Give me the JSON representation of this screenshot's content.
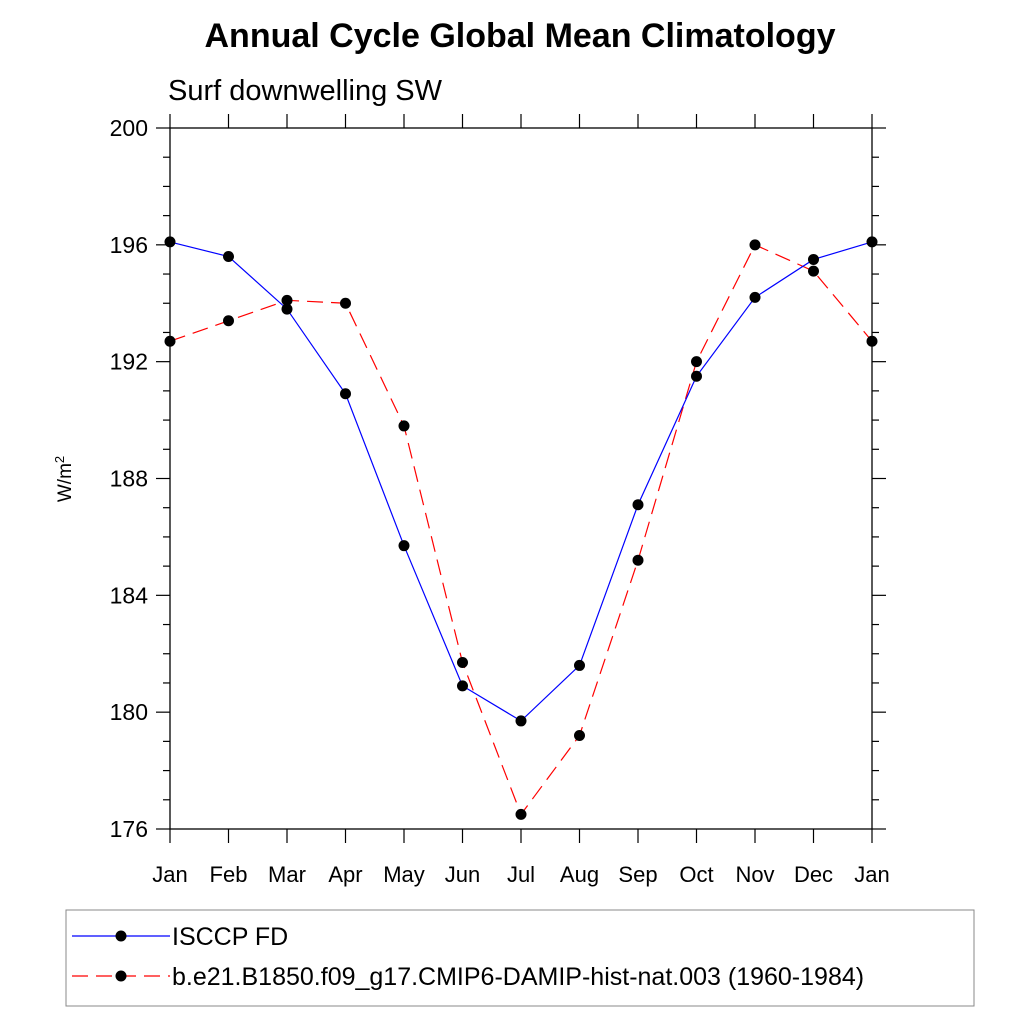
{
  "chart_data": {
    "type": "line",
    "title": "Annual Cycle Global Mean Climatology",
    "subtitle": "Surf downwelling SW",
    "ylabel": {
      "base": "W/m",
      "sup": "2"
    },
    "xlabel": "",
    "categories": [
      "Jan",
      "Feb",
      "Mar",
      "Apr",
      "May",
      "Jun",
      "Jul",
      "Aug",
      "Sep",
      "Oct",
      "Nov",
      "Dec",
      "Jan"
    ],
    "ylim": [
      176,
      200
    ],
    "yticks": [
      176,
      180,
      184,
      188,
      192,
      196,
      200
    ],
    "grid": false,
    "legend_position": "bottom",
    "series": [
      {
        "name": "ISCCP FD",
        "color": "#0000ff",
        "dash": "solid",
        "marker": "filled-circle",
        "values": [
          196.1,
          195.6,
          193.8,
          190.9,
          185.7,
          180.9,
          179.7,
          181.6,
          187.1,
          191.5,
          194.2,
          195.5,
          196.1
        ]
      },
      {
        "name": "b.e21.B1850.f09_g17.CMIP6-DAMIP-hist-nat.003 (1960-1984)",
        "color": "#ff0000",
        "dash": "dashed",
        "marker": "filled-circle",
        "values": [
          192.7,
          193.4,
          194.1,
          194.0,
          189.8,
          181.7,
          176.5,
          179.2,
          185.2,
          192.0,
          196.0,
          195.1,
          192.7
        ]
      }
    ]
  }
}
